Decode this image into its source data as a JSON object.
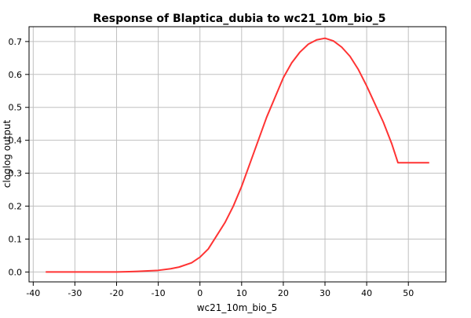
{
  "chart_data": {
    "type": "line",
    "title": "Response of Blaptica_dubia to wc21_10m_bio_5",
    "xlabel": "wc21_10m_bio_5",
    "ylabel": "cloglog output",
    "xlim": [
      -41,
      59
    ],
    "ylim": [
      -0.03,
      0.745
    ],
    "xticks": [
      -40,
      -30,
      -20,
      -10,
      0,
      10,
      20,
      30,
      40,
      50
    ],
    "yticks": [
      0.0,
      0.1,
      0.2,
      0.3,
      0.4,
      0.5,
      0.6,
      0.7
    ],
    "xtick_labels": [
      "-40",
      "-30",
      "-20",
      "-10",
      "0",
      "10",
      "20",
      "30",
      "40",
      "50"
    ],
    "ytick_labels": [
      "0.0",
      "0.1",
      "0.2",
      "0.3",
      "0.4",
      "0.5",
      "0.6",
      "0.7"
    ],
    "grid": true,
    "series": [
      {
        "color": "#ff3333",
        "x": [
          -37,
          -30,
          -20,
          -17,
          -15,
          -10,
          -7,
          -5,
          -2,
          0,
          2,
          4,
          6,
          8,
          10,
          12,
          14,
          16,
          18,
          20,
          22,
          24,
          26,
          28,
          30,
          32,
          34,
          36,
          38,
          40,
          42,
          44,
          46,
          47.5,
          49,
          52,
          55
        ],
        "y": [
          0.0,
          0.0,
          0.0,
          0.001,
          0.002,
          0.005,
          0.01,
          0.015,
          0.028,
          0.045,
          0.07,
          0.11,
          0.15,
          0.2,
          0.26,
          0.33,
          0.4,
          0.47,
          0.53,
          0.59,
          0.635,
          0.668,
          0.692,
          0.705,
          0.71,
          0.702,
          0.683,
          0.655,
          0.615,
          0.565,
          0.51,
          0.455,
          0.39,
          0.332,
          0.332,
          0.332,
          0.332
        ]
      }
    ]
  }
}
